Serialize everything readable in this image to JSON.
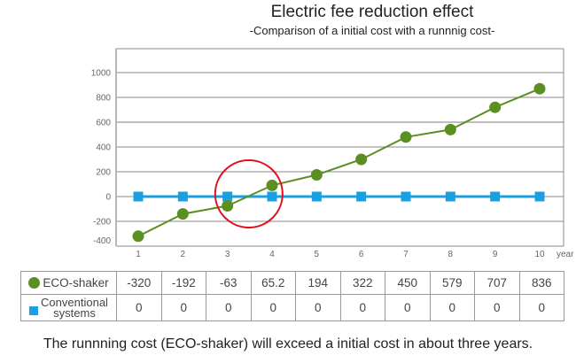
{
  "chart_data": {
    "type": "line",
    "title": "Electric fee reduction effect",
    "subtitle": "-Comparison of a initial cost with a runnnig cost-",
    "xlabel": "year",
    "ylabel": "",
    "x": [
      1,
      2,
      3,
      4,
      5,
      6,
      7,
      8,
      9,
      10
    ],
    "x_tick_labels": [
      "1",
      "2",
      "3",
      "4",
      "5",
      "6",
      "7",
      "8",
      "9",
      "10"
    ],
    "y_ticks": [
      1000,
      800,
      600,
      400,
      200,
      0,
      -200,
      -400
    ],
    "y_tick_labels": [
      "1000",
      "800",
      "600",
      "400",
      "200",
      "0",
      "-200",
      "-400"
    ],
    "ylim": [
      -400,
      1190
    ],
    "grid": true,
    "series": [
      {
        "name": "ECO-shaker",
        "marker": "circle",
        "color": "#5b8f22",
        "values": [
          -320,
          -192,
          -63,
          65.2,
          194,
          322,
          450,
          579,
          707,
          836
        ],
        "plotted": [
          -320,
          -140,
          -75,
          90,
          175,
          300,
          480,
          540,
          720,
          870
        ]
      },
      {
        "name": "Conventional systems",
        "marker": "square",
        "color": "#1aa0e0",
        "values": [
          0,
          0,
          0,
          0,
          0,
          0,
          0,
          0,
          0,
          0
        ]
      }
    ],
    "annotation": {
      "type": "circle",
      "color": "#e0101a",
      "center_x": 3.5,
      "center_y": 0
    }
  },
  "table": {
    "rows": [
      {
        "label": "ECO-shaker",
        "values": [
          "-320",
          "-192",
          "-63",
          "65.2",
          "194",
          "322",
          "450",
          "579",
          "707",
          "836"
        ]
      },
      {
        "label_line1": "Conventional",
        "label_line2": "systems",
        "values": [
          "0",
          "0",
          "0",
          "0",
          "0",
          "0",
          "0",
          "0",
          "0",
          "0"
        ]
      }
    ]
  },
  "footer": "The runnning cost (ECO-shaker) will exceed a initial cost in about three years."
}
